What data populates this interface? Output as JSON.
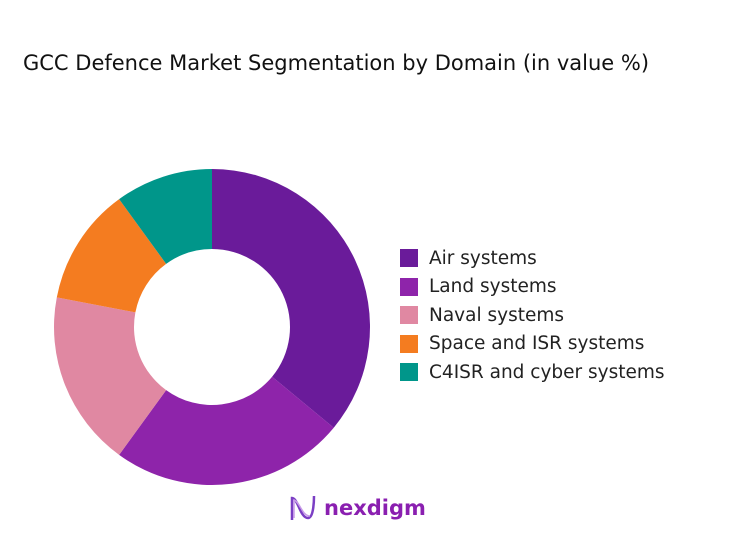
{
  "chart_data": {
    "type": "pie",
    "title": "GCC Defence Market Segmentation by Domain (in value %)",
    "categories": [
      "Air systems",
      "Land systems",
      "Naval systems",
      "Space and ISR systems",
      "C4ISR and cyber systems"
    ],
    "values": [
      36,
      24,
      18,
      12,
      10
    ],
    "colors": [
      "#6a1b9a",
      "#8e24aa",
      "#e088a2",
      "#f47c20",
      "#00968a"
    ],
    "donut": true,
    "legend_position": "right"
  },
  "logo": {
    "text": "nexdigm"
  }
}
